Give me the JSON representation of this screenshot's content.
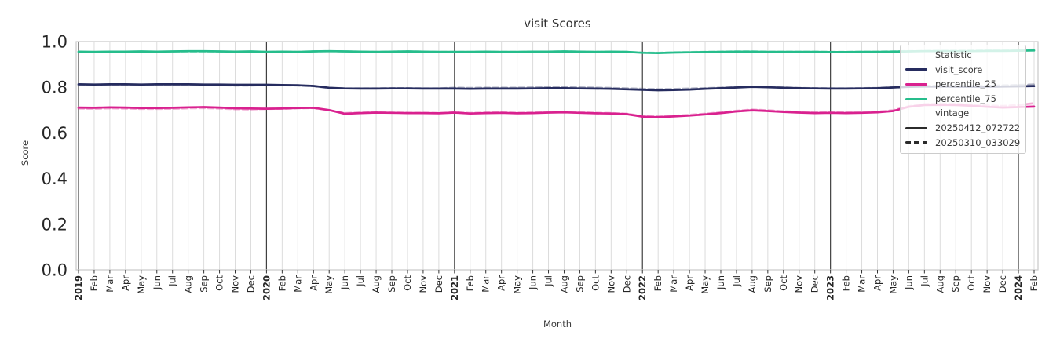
{
  "chart_data": {
    "type": "line",
    "title": "visit Scores",
    "xlabel": "Month",
    "ylabel": "Score",
    "ylim": [
      0.0,
      1.0
    ],
    "yticks": [
      0.0,
      0.2,
      0.4,
      0.6,
      0.8,
      1.0
    ],
    "grid": "vertical-per-month, dark line at each year start",
    "legend_position": "upper right",
    "x_labels": [
      "2019",
      "Feb",
      "Mar",
      "Apr",
      "May",
      "Jun",
      "Jul",
      "Aug",
      "Sep",
      "Oct",
      "Nov",
      "Dec",
      "2020",
      "Feb",
      "Mar",
      "Apr",
      "May",
      "Jun",
      "Jul",
      "Aug",
      "Sep",
      "Oct",
      "Nov",
      "Dec",
      "2021",
      "Feb",
      "Mar",
      "Apr",
      "May",
      "Jun",
      "Jul",
      "Aug",
      "Sep",
      "Oct",
      "Nov",
      "Dec",
      "2022",
      "Feb",
      "Mar",
      "Apr",
      "May",
      "Jun",
      "Jul",
      "Aug",
      "Sep",
      "Oct",
      "Nov",
      "Dec",
      "2023",
      "Feb",
      "Mar",
      "Apr",
      "May",
      "Jun",
      "Jul",
      "Aug",
      "Sep",
      "Oct",
      "Nov",
      "Dec",
      "2024",
      "Feb"
    ],
    "legend": {
      "statistic_title": "Statistic",
      "vintage_title": "vintage",
      "statistics": [
        {
          "label": "visit_score",
          "color": "#262c5f"
        },
        {
          "label": "percentile_25",
          "color": "#d9218f"
        },
        {
          "label": "percentile_75",
          "color": "#26bd8c"
        }
      ],
      "vintages": [
        {
          "label": "20250412_072722",
          "dash": "solid"
        },
        {
          "label": "20250310_033029",
          "dash": "dashed"
        }
      ],
      "vintage_swatch_color": "#2b2b2b"
    },
    "colors": {
      "grid": "#dcdcdc",
      "year_line": "#404040",
      "spine": "#c9c9c9",
      "tick_text": "#262626",
      "label_text": "#3a3a3a"
    },
    "series": [
      {
        "name": "visit_score",
        "vintage": "20250310_033029",
        "color": "#262c5f",
        "dash": "dashed",
        "opacity": 0.38,
        "values": [
          0.81,
          0.809,
          0.81,
          0.81,
          0.809,
          0.81,
          0.81,
          0.81,
          0.809,
          0.809,
          0.808,
          0.808,
          0.81,
          0.809,
          0.808,
          0.805,
          0.797,
          0.795,
          0.795,
          0.795,
          0.796,
          0.796,
          0.795,
          0.795,
          0.798,
          0.797,
          0.798,
          0.798,
          0.798,
          0.799,
          0.8,
          0.8,
          0.799,
          0.798,
          0.797,
          0.795,
          0.793,
          0.791,
          0.792,
          0.794,
          0.796,
          0.798,
          0.8,
          0.803,
          0.801,
          0.799,
          0.797,
          0.796,
          0.795,
          0.795,
          0.796,
          0.797,
          0.8,
          0.804,
          0.806,
          0.806,
          0.805,
          0.805,
          0.806,
          0.808,
          0.81,
          0.812
        ]
      },
      {
        "name": "percentile_25",
        "vintage": "20250310_033029",
        "color": "#d9218f",
        "dash": "dashed",
        "opacity": 0.38,
        "values": [
          0.707,
          0.706,
          0.708,
          0.707,
          0.705,
          0.705,
          0.706,
          0.708,
          0.709,
          0.707,
          0.704,
          0.703,
          0.705,
          0.706,
          0.708,
          0.709,
          0.699,
          0.687,
          0.689,
          0.69,
          0.689,
          0.688,
          0.688,
          0.687,
          0.69,
          0.687,
          0.689,
          0.69,
          0.688,
          0.689,
          0.691,
          0.692,
          0.69,
          0.688,
          0.687,
          0.684,
          0.674,
          0.672,
          0.675,
          0.679,
          0.684,
          0.69,
          0.697,
          0.702,
          0.699,
          0.695,
          0.692,
          0.69,
          0.691,
          0.69,
          0.691,
          0.693,
          0.699,
          0.717,
          0.726,
          0.728,
          0.727,
          0.724,
          0.72,
          0.718,
          0.722,
          0.73
        ]
      },
      {
        "name": "percentile_75",
        "vintage": "20250310_033029",
        "color": "#26bd8c",
        "dash": "dashed",
        "opacity": 0.38,
        "values": [
          0.954,
          0.953,
          0.954,
          0.954,
          0.955,
          0.954,
          0.955,
          0.956,
          0.956,
          0.955,
          0.954,
          0.955,
          0.955,
          0.956,
          0.955,
          0.957,
          0.958,
          0.957,
          0.956,
          0.955,
          0.956,
          0.957,
          0.956,
          0.955,
          0.955,
          0.955,
          0.956,
          0.955,
          0.955,
          0.956,
          0.956,
          0.957,
          0.956,
          0.955,
          0.956,
          0.955,
          0.952,
          0.951,
          0.953,
          0.954,
          0.955,
          0.956,
          0.957,
          0.957,
          0.956,
          0.956,
          0.956,
          0.956,
          0.955,
          0.955,
          0.956,
          0.956,
          0.957,
          0.958,
          0.959,
          0.96,
          0.96,
          0.961,
          0.962,
          0.963,
          0.964,
          0.965
        ]
      },
      {
        "name": "visit_score",
        "vintage": "20250412_072722",
        "color": "#262c5f",
        "dash": "solid",
        "opacity": 1,
        "values": [
          0.813,
          0.812,
          0.813,
          0.813,
          0.812,
          0.813,
          0.813,
          0.813,
          0.812,
          0.812,
          0.811,
          0.811,
          0.811,
          0.81,
          0.809,
          0.806,
          0.798,
          0.795,
          0.794,
          0.794,
          0.795,
          0.795,
          0.794,
          0.794,
          0.794,
          0.793,
          0.794,
          0.794,
          0.794,
          0.795,
          0.796,
          0.796,
          0.795,
          0.794,
          0.793,
          0.791,
          0.789,
          0.787,
          0.788,
          0.79,
          0.793,
          0.796,
          0.799,
          0.802,
          0.8,
          0.798,
          0.796,
          0.795,
          0.794,
          0.794,
          0.795,
          0.796,
          0.799,
          0.802,
          0.803,
          0.803,
          0.802,
          0.802,
          0.802,
          0.803,
          0.804,
          0.805
        ]
      },
      {
        "name": "percentile_25",
        "vintage": "20250412_072722",
        "color": "#d9218f",
        "dash": "solid",
        "opacity": 1,
        "values": [
          0.711,
          0.71,
          0.712,
          0.711,
          0.709,
          0.709,
          0.71,
          0.712,
          0.713,
          0.711,
          0.708,
          0.707,
          0.706,
          0.707,
          0.709,
          0.71,
          0.7,
          0.684,
          0.687,
          0.689,
          0.688,
          0.687,
          0.687,
          0.686,
          0.689,
          0.685,
          0.687,
          0.688,
          0.686,
          0.687,
          0.689,
          0.69,
          0.688,
          0.686,
          0.685,
          0.682,
          0.671,
          0.669,
          0.672,
          0.676,
          0.681,
          0.687,
          0.694,
          0.699,
          0.696,
          0.692,
          0.689,
          0.687,
          0.688,
          0.687,
          0.688,
          0.69,
          0.696,
          0.714,
          0.722,
          0.723,
          0.722,
          0.719,
          0.714,
          0.711,
          0.713,
          0.715
        ]
      },
      {
        "name": "percentile_75",
        "vintage": "20250412_072722",
        "color": "#26bd8c",
        "dash": "solid",
        "opacity": 1,
        "values": [
          0.956,
          0.955,
          0.956,
          0.956,
          0.957,
          0.956,
          0.957,
          0.958,
          0.958,
          0.957,
          0.956,
          0.957,
          0.955,
          0.956,
          0.955,
          0.957,
          0.958,
          0.957,
          0.956,
          0.955,
          0.956,
          0.957,
          0.956,
          0.955,
          0.955,
          0.955,
          0.956,
          0.955,
          0.955,
          0.956,
          0.956,
          0.957,
          0.956,
          0.955,
          0.956,
          0.955,
          0.951,
          0.95,
          0.952,
          0.953,
          0.954,
          0.955,
          0.956,
          0.956,
          0.955,
          0.955,
          0.955,
          0.955,
          0.954,
          0.954,
          0.955,
          0.955,
          0.956,
          0.957,
          0.958,
          0.958,
          0.958,
          0.958,
          0.959,
          0.959,
          0.96,
          0.961
        ]
      }
    ]
  }
}
